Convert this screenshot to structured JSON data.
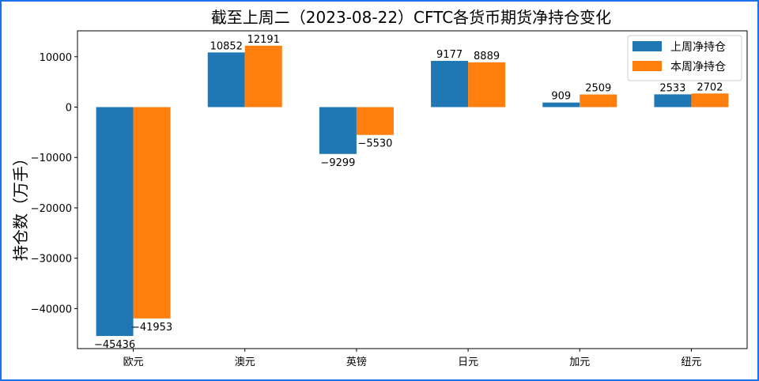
{
  "chart_data": {
    "type": "bar",
    "title": "截至上周二（2023-08-22）CFTC各货币期货净持仓变化",
    "xlabel": "",
    "ylabel": "持仓数（万手）",
    "categories": [
      "欧元",
      "澳元",
      "英镑",
      "日元",
      "加元",
      "纽元"
    ],
    "series": [
      {
        "name": "上周净持仓",
        "color": "#1f77b4",
        "values": [
          -45436,
          10852,
          -9299,
          9177,
          909,
          2533
        ]
      },
      {
        "name": "本周净持仓",
        "color": "#ff7f0e",
        "values": [
          -41953,
          12191,
          -5530,
          8889,
          2509,
          2702
        ]
      }
    ],
    "ylim": [
      -48000,
      15000
    ],
    "yticks": [
      10000,
      0,
      -10000,
      -20000,
      -30000,
      -40000
    ],
    "ytick_labels": [
      "10000",
      "0",
      "−10000",
      "−20000",
      "−30000",
      "−40000"
    ],
    "grid": false,
    "legend_position": "top-right"
  }
}
